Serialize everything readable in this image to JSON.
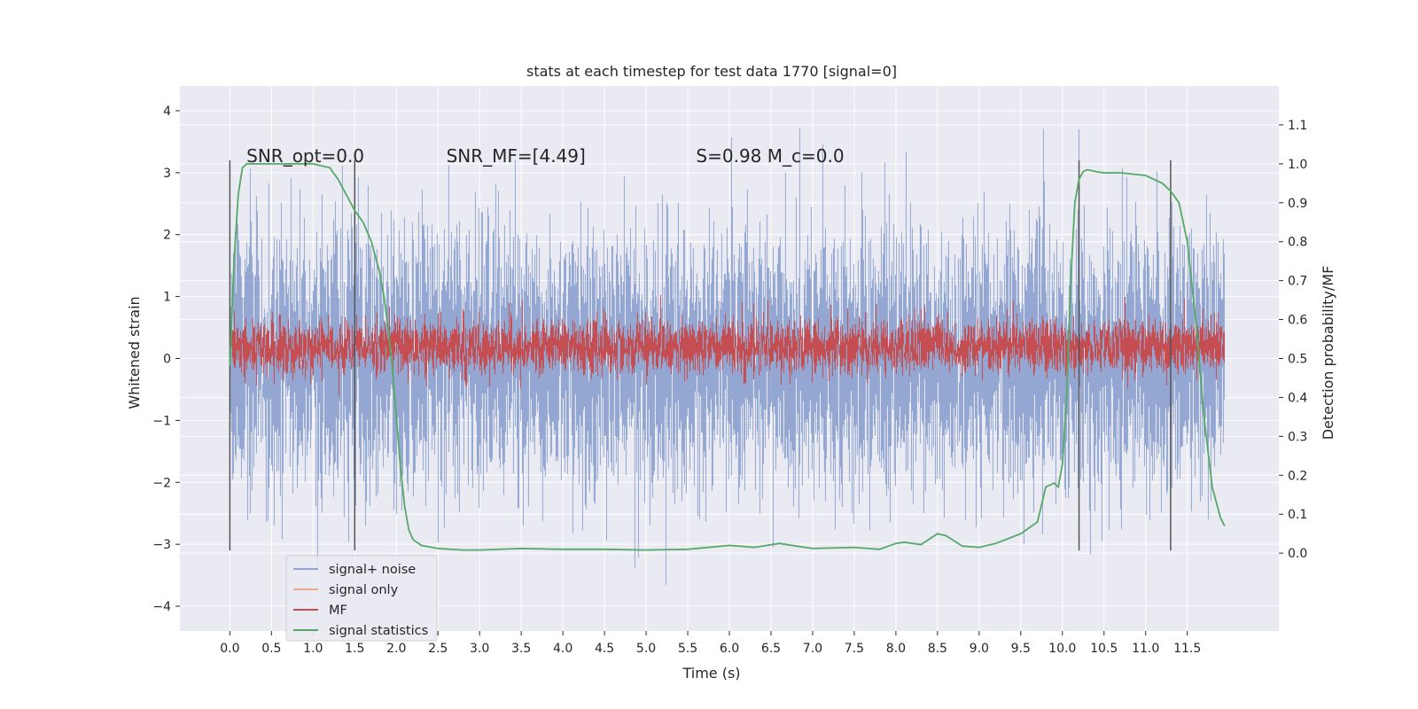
{
  "chart_data": {
    "type": "line",
    "title": "stats at each timestep for test data 1770 [signal=0]",
    "xlabel": "Time (s)",
    "ylabel": "Whitened strain",
    "ylabel_right": "Detection probability/MF",
    "xlim": [
      -0.6,
      12.6
    ],
    "ylim": [
      -4.4,
      4.4
    ],
    "ylim_right": [
      -0.2,
      1.2
    ],
    "x_ticks": [
      "0.0",
      "0.5",
      "1.0",
      "1.5",
      "2.0",
      "2.5",
      "3.0",
      "3.5",
      "4.0",
      "4.5",
      "5.0",
      "5.5",
      "6.0",
      "6.5",
      "7.0",
      "7.5",
      "8.0",
      "8.5",
      "9.0",
      "9.5",
      "10.0",
      "10.5",
      "11.0",
      "11.5"
    ],
    "y_ticks": [
      "4",
      "3",
      "2",
      "1",
      "0",
      "−1",
      "−2",
      "−3",
      "−4"
    ],
    "y_ticks_right": [
      "1.1",
      "1.0",
      "0.9",
      "0.8",
      "0.7",
      "0.6",
      "0.5",
      "0.4",
      "0.3",
      "0.2",
      "0.1",
      "0.0"
    ],
    "grid": true,
    "legend_position": "lower-left",
    "annotations": [
      {
        "text": "SNR_opt=0.0",
        "x": 0.2,
        "y": 3.2
      },
      {
        "text": "SNR_MF=[4.49]",
        "x": 2.6,
        "y": 3.2
      },
      {
        "text": "S=0.98   M_c=0.0",
        "x": 5.6,
        "y": 3.2
      }
    ],
    "series": [
      {
        "name": "signal+ noise",
        "color": "#8fa3d0",
        "axis": "left",
        "kind": "noise",
        "x_range": [
          0.0,
          11.95
        ],
        "amplitude_std": 1.0
      },
      {
        "name": "signal only",
        "color": "#f0a98a",
        "axis": "left",
        "values": []
      },
      {
        "name": "MF",
        "color": "#c44e52",
        "axis": "left",
        "kind": "mf",
        "x_range": [
          0.0,
          11.95
        ],
        "level_right": 0.53
      },
      {
        "name": "signal statistics",
        "color": "#55a868",
        "axis": "right",
        "x": [
          0.0,
          0.05,
          0.1,
          0.15,
          0.2,
          0.3,
          0.5,
          0.8,
          1.0,
          1.2,
          1.3,
          1.4,
          1.5,
          1.6,
          1.7,
          1.75,
          1.8,
          1.85,
          1.9,
          1.95,
          2.0,
          2.05,
          2.1,
          2.15,
          2.2,
          2.3,
          2.5,
          2.8,
          3.0,
          3.5,
          4.0,
          4.5,
          5.0,
          5.5,
          6.0,
          6.3,
          6.6,
          7.0,
          7.5,
          7.8,
          8.0,
          8.1,
          8.3,
          8.5,
          8.6,
          8.8,
          9.0,
          9.2,
          9.5,
          9.7,
          9.8,
          9.9,
          9.95,
          10.0,
          10.05,
          10.1,
          10.15,
          10.2,
          10.25,
          10.3,
          10.4,
          10.5,
          10.7,
          11.0,
          11.2,
          11.3,
          11.4,
          11.5,
          11.6,
          11.7,
          11.8,
          11.9,
          11.95
        ],
        "y": [
          0.48,
          0.75,
          0.92,
          0.99,
          1.0,
          1.0,
          1.0,
          1.0,
          1.0,
          0.99,
          0.96,
          0.92,
          0.88,
          0.85,
          0.8,
          0.76,
          0.72,
          0.66,
          0.58,
          0.48,
          0.35,
          0.22,
          0.12,
          0.06,
          0.035,
          0.02,
          0.012,
          0.008,
          0.008,
          0.012,
          0.01,
          0.01,
          0.008,
          0.01,
          0.02,
          0.015,
          0.025,
          0.012,
          0.015,
          0.01,
          0.025,
          0.028,
          0.022,
          0.05,
          0.045,
          0.018,
          0.015,
          0.025,
          0.05,
          0.08,
          0.17,
          0.18,
          0.17,
          0.23,
          0.4,
          0.7,
          0.9,
          0.96,
          0.98,
          0.985,
          0.98,
          0.977,
          0.977,
          0.97,
          0.95,
          0.93,
          0.9,
          0.8,
          0.6,
          0.35,
          0.17,
          0.09,
          0.07
        ]
      }
    ],
    "vertical_lines_x": [
      0.0,
      1.5,
      10.2,
      11.3
    ]
  }
}
